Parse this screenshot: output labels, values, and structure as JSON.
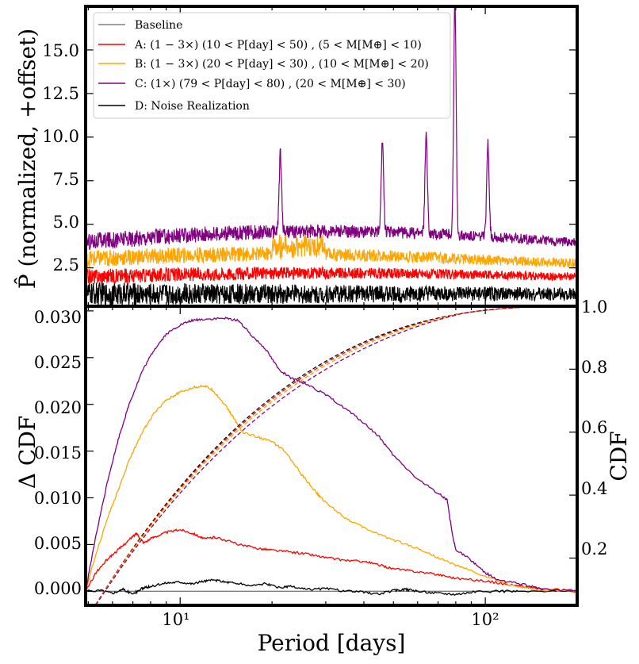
{
  "chart_data": [
    {
      "type": "line",
      "panel": "top",
      "ylabel": "P̂ (normalized, +offset)",
      "yticks": [
        "2.5",
        "5.0",
        "7.5",
        "10.0",
        "12.5",
        "15.0"
      ],
      "ylim": [
        0.3,
        17.5
      ],
      "xscale": "log",
      "xlim": [
        4.9,
        200
      ],
      "legend": [
        {
          "label": "Baseline",
          "color": "#808080"
        },
        {
          "label": "A: (1 − 3×)   (10 < P[day] < 50)   , (5 <   M[M⊕] < 10)",
          "color": "#ff0000"
        },
        {
          "label": "B: (1 − 3×)   (20 < P[day] < 30)   , (10 < M[M⊕] < 20)",
          "color": "#ffa500"
        },
        {
          "label": "C: (1×)          (79 < P[day] < 80)   , (20 < M[M⊕] < 30)",
          "color": "#800080"
        },
        {
          "label": "D: Noise Realization",
          "color": "#000000"
        }
      ],
      "series": [
        {
          "name": "Baseline",
          "color": "#808080",
          "level": 1.0,
          "noise": 0.0
        },
        {
          "name": "D: Noise Realization",
          "color": "#000000",
          "level": 1.0,
          "noise": 0.55
        },
        {
          "name": "A",
          "color": "#ff0000",
          "level": 2.0,
          "noise": 0.35
        },
        {
          "name": "B",
          "color": "#ffa500",
          "level": 3.0,
          "noise": 0.4
        },
        {
          "name": "C",
          "color": "#800080",
          "level": 3.8,
          "noise": 0.4,
          "peaks": [
            [
              21.3,
              9.0
            ],
            [
              46,
              9.7
            ],
            [
              64,
              10.0
            ],
            [
              79.5,
              17.8
            ],
            [
              102,
              9.6
            ]
          ]
        }
      ]
    },
    {
      "type": "line",
      "panel": "bottom",
      "xlabel": "Period [days]",
      "ylabel": "Δ CDF",
      "ylabel_right": "CDF",
      "xscale": "log",
      "xlim": [
        4.9,
        200
      ],
      "xticks": [
        {
          "value": 10,
          "label": "10¹"
        },
        {
          "value": 100,
          "label": "10²"
        }
      ],
      "ylim": [
        -0.0015,
        0.0305
      ],
      "yticks": [
        "0.000",
        "0.005",
        "0.010",
        "0.015",
        "0.020",
        "0.025",
        "0.030"
      ],
      "ylim_right": [
        0.05,
        1.0
      ],
      "yticks_right": [
        "0.2",
        "0.4",
        "0.6",
        "0.8",
        "1.0"
      ],
      "delta_series": [
        {
          "name": "Baseline",
          "color": "#808080",
          "points": [
            [
              4.9,
              0.0
            ],
            [
              200,
              0.0
            ]
          ]
        },
        {
          "name": "D",
          "color": "#000000",
          "points": [
            [
              4.9,
              0.0
            ],
            [
              5.5,
              0.0001
            ],
            [
              6.0,
              -0.0002
            ],
            [
              6.5,
              0.0002
            ],
            [
              7.0,
              -0.0003
            ],
            [
              7.5,
              0.0003
            ],
            [
              8.0,
              0.0005
            ],
            [
              9.0,
              0.0009
            ],
            [
              10.0,
              0.001
            ],
            [
              11.0,
              0.0008
            ],
            [
              12.0,
              0.0011
            ],
            [
              13.0,
              0.0012
            ],
            [
              14.0,
              0.001
            ],
            [
              15.0,
              0.0009
            ],
            [
              17.0,
              0.0006
            ],
            [
              19.0,
              0.0008
            ],
            [
              21.0,
              0.0004
            ],
            [
              23.0,
              0.0005
            ],
            [
              26.0,
              0.0002
            ],
            [
              30.0,
              0.0003
            ],
            [
              35.0,
              0.0
            ],
            [
              40.0,
              -0.0001
            ],
            [
              45.0,
              -0.0003
            ],
            [
              50.0,
              0.0001
            ],
            [
              55.0,
              0.0002
            ],
            [
              60.0,
              0.0
            ],
            [
              70.0,
              -0.0002
            ],
            [
              80.0,
              -0.0003
            ],
            [
              90.0,
              -0.0001
            ],
            [
              110.0,
              0.0
            ],
            [
              130.0,
              0.0
            ],
            [
              200.0,
              0.0
            ]
          ]
        },
        {
          "name": "A",
          "color": "#ff0000",
          "points": [
            [
              4.9,
              0.0
            ],
            [
              5.3,
              0.002
            ],
            [
              5.8,
              0.0035
            ],
            [
              6.3,
              0.0045
            ],
            [
              6.8,
              0.0055
            ],
            [
              7.2,
              0.0062
            ],
            [
              7.6,
              0.0052
            ],
            [
              8.2,
              0.0058
            ],
            [
              9.0,
              0.0063
            ],
            [
              10.0,
              0.0066
            ],
            [
              11.0,
              0.0062
            ],
            [
              12.0,
              0.0056
            ],
            [
              13.0,
              0.0058
            ],
            [
              14.0,
              0.0055
            ],
            [
              16.0,
              0.0049
            ],
            [
              18.0,
              0.0046
            ],
            [
              20.0,
              0.0044
            ],
            [
              23.0,
              0.0042
            ],
            [
              26.0,
              0.004
            ],
            [
              30.0,
              0.0036
            ],
            [
              35.0,
              0.0033
            ],
            [
              40.0,
              0.0032
            ],
            [
              45.0,
              0.0028
            ],
            [
              50.0,
              0.0024
            ],
            [
              60.0,
              0.0021
            ],
            [
              70.0,
              0.0018
            ],
            [
              80.0,
              0.0014
            ],
            [
              100.0,
              0.0011
            ],
            [
              120.0,
              0.0007
            ],
            [
              150.0,
              0.0003
            ],
            [
              200.0,
              0.0
            ]
          ]
        },
        {
          "name": "B",
          "color": "#ffa500",
          "points": [
            [
              4.9,
              0.0
            ],
            [
              5.3,
              0.004
            ],
            [
              5.8,
              0.008
            ],
            [
              6.3,
              0.011
            ],
            [
              6.8,
              0.014
            ],
            [
              7.5,
              0.017
            ],
            [
              8.2,
              0.019
            ],
            [
              9.0,
              0.0205
            ],
            [
              10.0,
              0.0213
            ],
            [
              11.0,
              0.0218
            ],
            [
              12.0,
              0.022
            ],
            [
              12.8,
              0.0215
            ],
            [
              14.0,
              0.02
            ],
            [
              15.0,
              0.0185
            ],
            [
              16.0,
              0.017
            ],
            [
              18.0,
              0.0165
            ],
            [
              20.0,
              0.016
            ],
            [
              22.0,
              0.015
            ],
            [
              25.0,
              0.0125
            ],
            [
              28.0,
              0.0105
            ],
            [
              30.0,
              0.0095
            ],
            [
              35.0,
              0.0078
            ],
            [
              40.0,
              0.0068
            ],
            [
              50.0,
              0.0055
            ],
            [
              60.0,
              0.0046
            ],
            [
              70.0,
              0.0036
            ],
            [
              80.0,
              0.0028
            ],
            [
              100.0,
              0.0016
            ],
            [
              120.0,
              0.0007
            ],
            [
              150.0,
              0.0001
            ],
            [
              200.0,
              0.0
            ]
          ]
        },
        {
          "name": "C",
          "color": "#800080",
          "points": [
            [
              4.9,
              0.0
            ],
            [
              5.3,
              0.006
            ],
            [
              5.8,
              0.012
            ],
            [
              6.3,
              0.0165
            ],
            [
              6.8,
              0.02
            ],
            [
              7.5,
              0.0235
            ],
            [
              8.2,
              0.0258
            ],
            [
              9.0,
              0.0275
            ],
            [
              10.0,
              0.0285
            ],
            [
              11.0,
              0.029
            ],
            [
              12.0,
              0.0291
            ],
            [
              14.0,
              0.0292
            ],
            [
              15.5,
              0.029
            ],
            [
              17.0,
              0.0275
            ],
            [
              19.0,
              0.026
            ],
            [
              21.0,
              0.0238
            ],
            [
              23.0,
              0.0228
            ],
            [
              26.0,
              0.0222
            ],
            [
              30.0,
              0.021
            ],
            [
              35.0,
              0.0195
            ],
            [
              40.0,
              0.018
            ],
            [
              45.0,
              0.0165
            ],
            [
              50.0,
              0.0145
            ],
            [
              60.0,
              0.012
            ],
            [
              70.0,
              0.0105
            ],
            [
              75.0,
              0.0098
            ],
            [
              78.0,
              0.006
            ],
            [
              80.0,
              0.0045
            ],
            [
              90.0,
              0.0033
            ],
            [
              100.0,
              0.002
            ],
            [
              110.0,
              0.0012
            ],
            [
              130.0,
              0.0008
            ],
            [
              150.0,
              0.0003
            ],
            [
              200.0,
              0.0
            ]
          ]
        }
      ],
      "cdf_series": [
        {
          "name": "Baseline",
          "color": "#000000"
        },
        {
          "name": "A",
          "color": "#ff0000"
        },
        {
          "name": "B",
          "color": "#ffa500"
        },
        {
          "name": "C",
          "color": "#800080"
        }
      ]
    }
  ]
}
